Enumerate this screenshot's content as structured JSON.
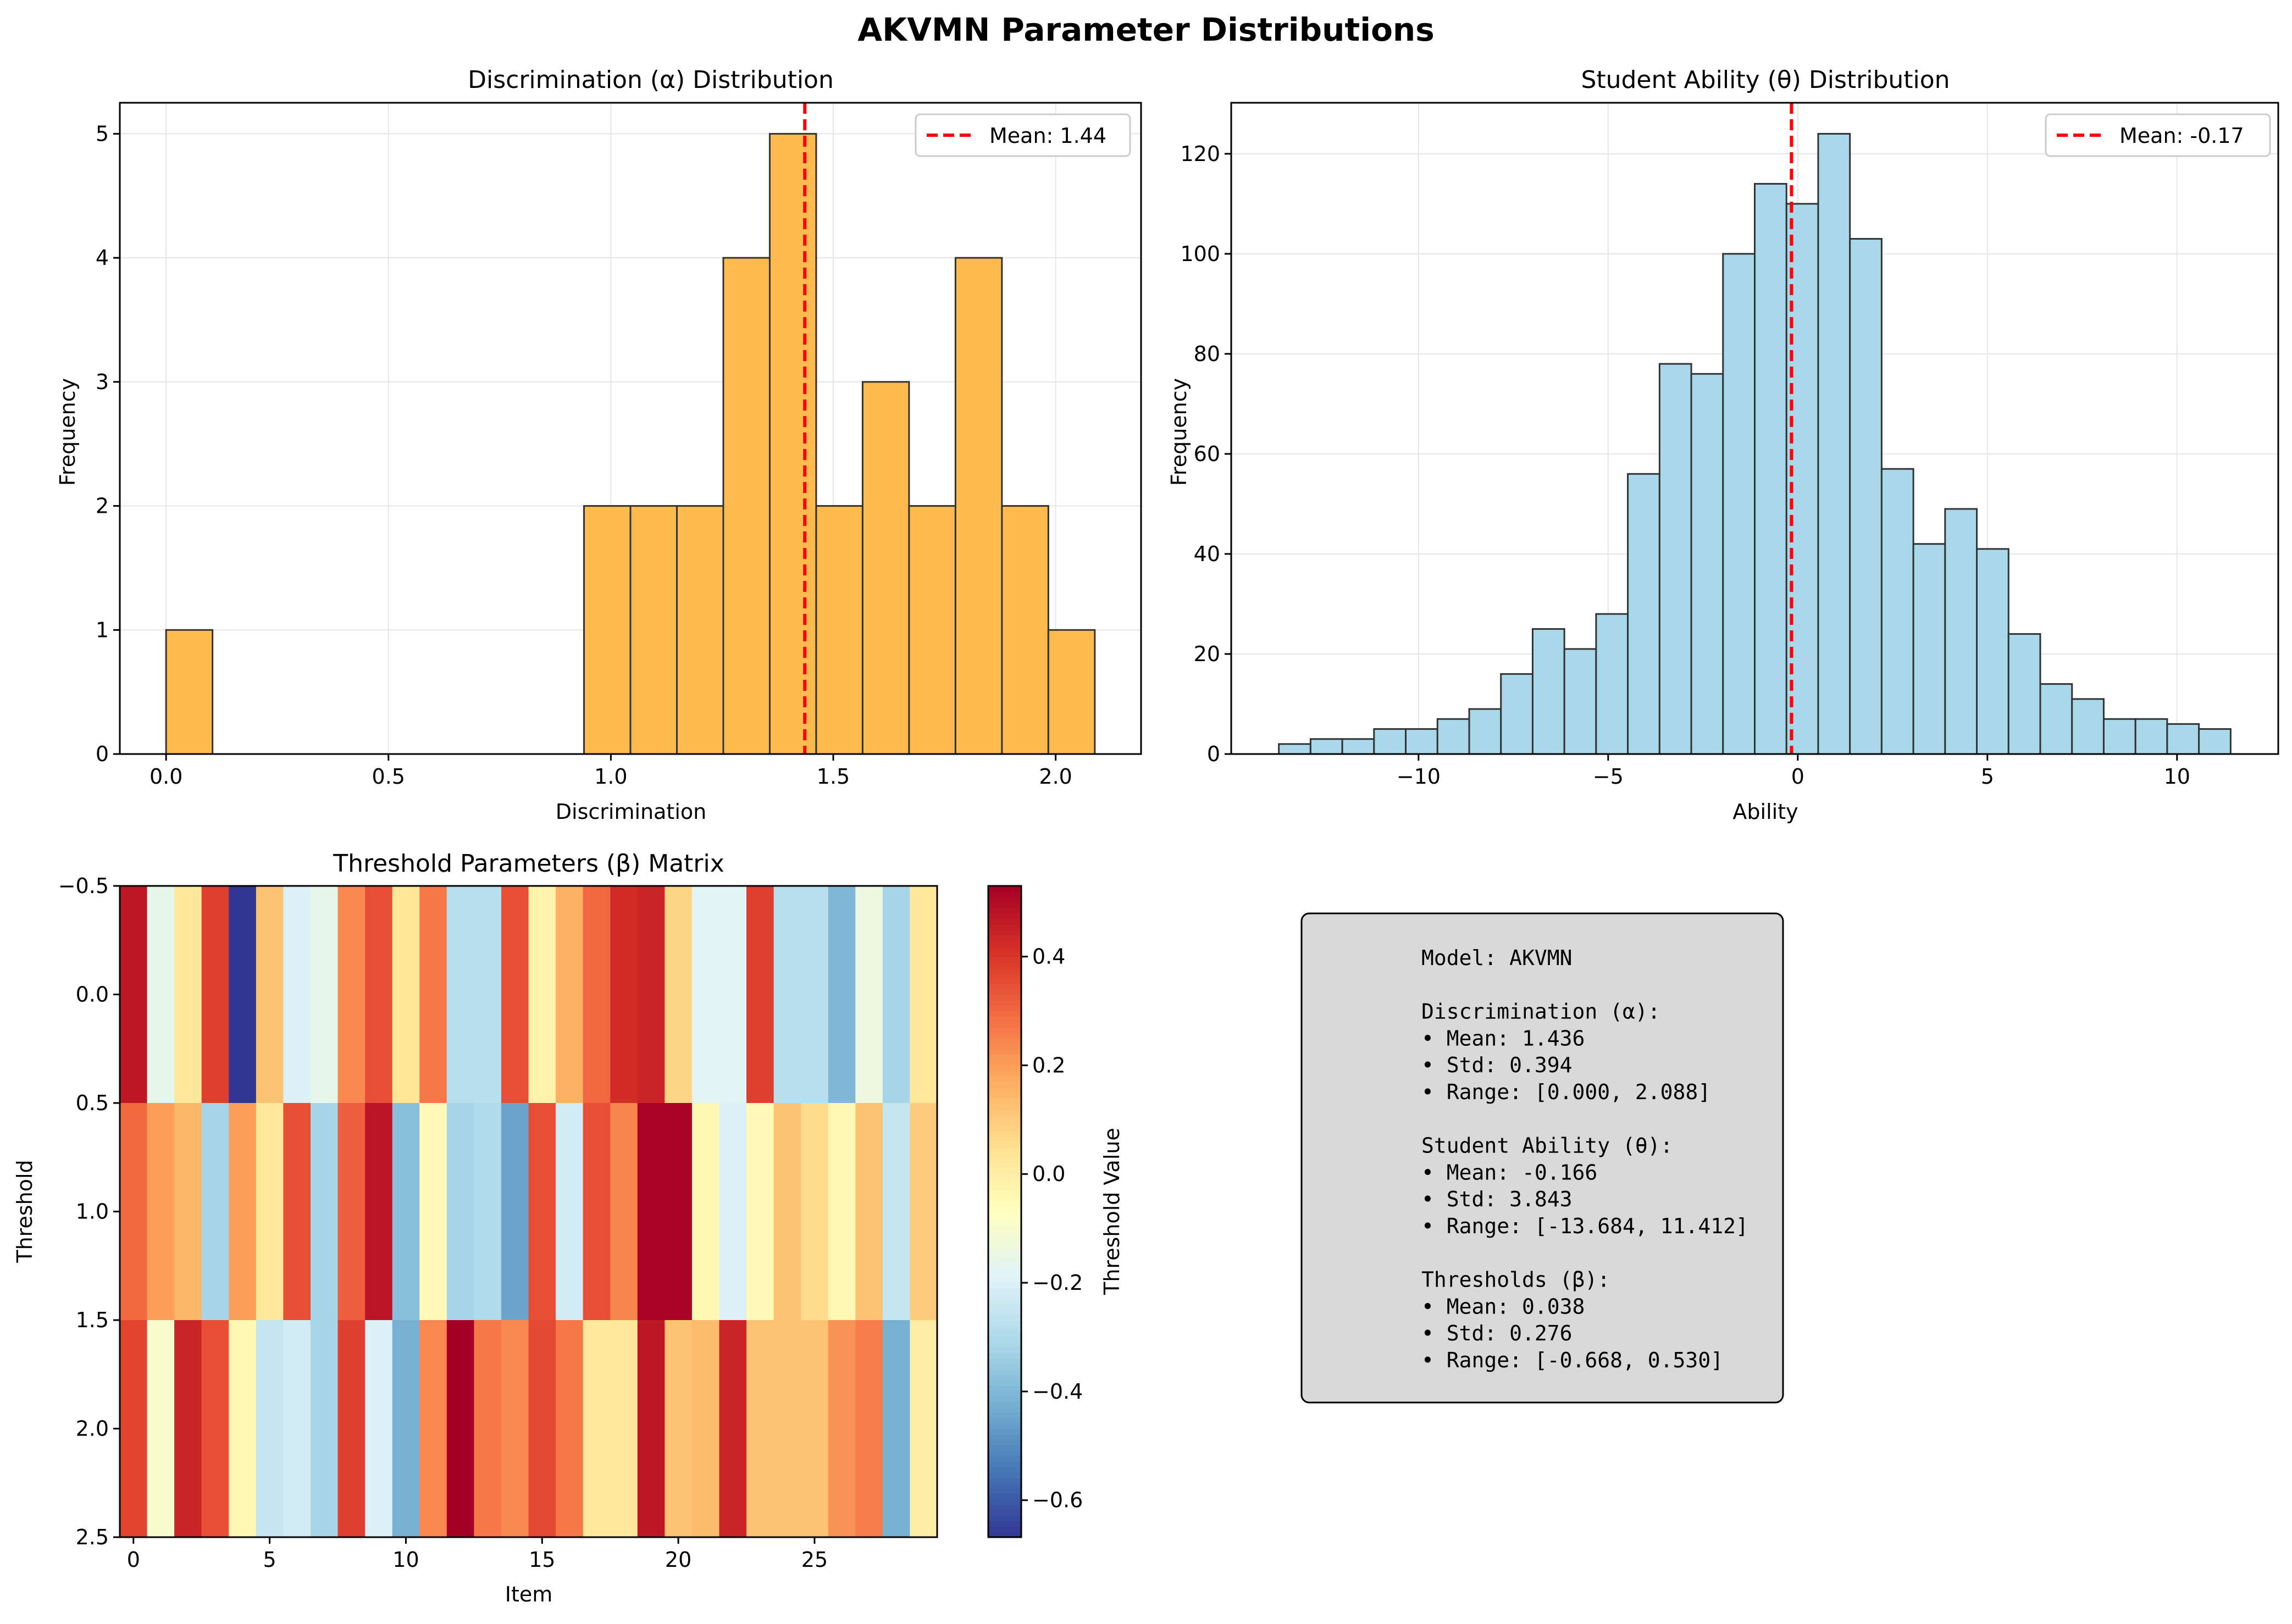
{
  "figure": {
    "suptitle": "AKVMN Parameter Distributions"
  },
  "colors": {
    "hist1_fill": "#ffbb4d",
    "hist2_fill": "#a8d8ea",
    "edge": "#333333",
    "mean_line": "#ff0000",
    "grid": "#e6e6e6",
    "stats_box_fill": "#d9d9d9"
  },
  "chart_data": [
    {
      "type": "bar",
      "subtype": "histogram",
      "title": "Discrimination (α) Distribution",
      "xlabel": "Discrimination",
      "ylabel": "Frequency",
      "xlim": [
        -0.104,
        2.192
      ],
      "ylim": [
        0,
        5.25
      ],
      "xticks": [
        0.0,
        0.5,
        1.0,
        1.5,
        2.0
      ],
      "xtick_labels": [
        "0.0",
        "0.5",
        "1.0",
        "1.5",
        "2.0"
      ],
      "yticks": [
        0,
        1,
        2,
        3,
        4,
        5
      ],
      "ytick_labels": [
        "0",
        "1",
        "2",
        "3",
        "4",
        "5"
      ],
      "bin_start": 0.0,
      "bin_width": 0.1044,
      "values": [
        1,
        0,
        0,
        0,
        0,
        0,
        0,
        0,
        0,
        2,
        2,
        2,
        4,
        5,
        2,
        3,
        2,
        4,
        2,
        1
      ],
      "mean": 1.436,
      "legend": "Mean: 1.44",
      "legend_position": "upper right",
      "grid": true
    },
    {
      "type": "bar",
      "subtype": "histogram",
      "title": "Student Ability (θ) Distribution",
      "xlabel": "Ability",
      "ylabel": "Frequency",
      "xlim": [
        -14.94,
        12.67
      ],
      "ylim": [
        0,
        130.2
      ],
      "xticks": [
        -10,
        -5,
        0,
        5,
        10
      ],
      "xtick_labels": [
        "−10",
        "−5",
        "0",
        "5",
        "10"
      ],
      "yticks": [
        0,
        20,
        40,
        60,
        80,
        100,
        120
      ],
      "ytick_labels": [
        "0",
        "20",
        "40",
        "60",
        "80",
        "100",
        "120"
      ],
      "bin_start": -13.684,
      "bin_width": 0.8366,
      "values": [
        2,
        3,
        3,
        5,
        5,
        7,
        9,
        16,
        25,
        21,
        28,
        56,
        78,
        76,
        100,
        114,
        110,
        124,
        103,
        57,
        42,
        49,
        41,
        24,
        14,
        11,
        7,
        7,
        6,
        5
      ],
      "mean": -0.166,
      "legend": "Mean: -0.17",
      "legend_position": "upper right",
      "grid": true
    },
    {
      "type": "heatmap",
      "title": "Threshold Parameters (β) Matrix",
      "xlabel": "Item",
      "ylabel": "Threshold",
      "colorbar_label": "Threshold Value",
      "colormap": "RdYlBu_r",
      "vmin": -0.668,
      "vmax": 0.53,
      "xticks": [
        0,
        5,
        10,
        15,
        20,
        25
      ],
      "xtick_labels": [
        "0",
        "5",
        "10",
        "15",
        "20",
        "25"
      ],
      "yticks": [
        -0.5,
        0.0,
        0.5,
        1.0,
        1.5,
        2.0,
        2.5
      ],
      "ytick_labels": [
        "−0.5",
        "0.0",
        "0.5",
        "1.0",
        "1.5",
        "2.0",
        "2.5"
      ],
      "cbar_ticks": [
        -0.6,
        -0.4,
        -0.2,
        0.0,
        0.2,
        0.4
      ],
      "cbar_tick_labels": [
        "−0.6",
        "−0.4",
        "−0.2",
        "0.0",
        "0.2",
        "0.4"
      ],
      "matrix": [
        [
          0.47,
          -0.16,
          0.02,
          0.38,
          -0.668,
          0.12,
          -0.2,
          -0.16,
          0.24,
          0.35,
          0.03,
          0.27,
          -0.28,
          -0.28,
          0.35,
          -0.02,
          0.16,
          0.3,
          0.42,
          0.44,
          0.08,
          -0.18,
          -0.18,
          0.38,
          -0.28,
          -0.28,
          -0.4,
          -0.14,
          -0.32,
          0.02
        ],
        [
          0.3,
          0.2,
          0.15,
          -0.32,
          0.2,
          0.02,
          0.35,
          -0.32,
          0.32,
          0.48,
          -0.38,
          -0.05,
          -0.32,
          -0.3,
          -0.45,
          0.35,
          -0.22,
          0.35,
          0.25,
          0.52,
          0.52,
          -0.04,
          -0.2,
          -0.05,
          0.12,
          0.06,
          -0.04,
          0.12,
          -0.25,
          0.1
        ],
        [
          0.37,
          -0.1,
          0.44,
          0.35,
          -0.04,
          -0.25,
          -0.22,
          -0.32,
          0.38,
          -0.2,
          -0.42,
          0.24,
          0.53,
          0.27,
          0.24,
          0.36,
          0.27,
          0.02,
          0.02,
          0.47,
          0.12,
          0.14,
          0.44,
          0.12,
          0.12,
          0.12,
          0.22,
          0.26,
          -0.42,
          0.0
        ]
      ]
    }
  ],
  "stats_box": {
    "lines": [
      "Model: AKVMN",
      "",
      "Discrimination (α):",
      "• Mean: 1.436",
      "• Std: 0.394",
      "• Range: [0.000, 2.088]",
      "",
      "Student Ability (θ):",
      "• Mean: -0.166",
      "• Std: 3.843",
      "• Range: [-13.684, 11.412]",
      "",
      "Thresholds (β):",
      "• Mean: 0.038",
      "• Std: 0.276",
      "• Range: [-0.668, 0.530]"
    ]
  }
}
